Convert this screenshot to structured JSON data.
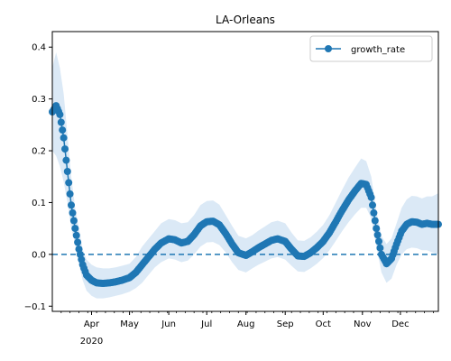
{
  "chart_data": {
    "type": "line",
    "title": "LA-Orleans",
    "xlabel": "",
    "ylabel": "",
    "x_range": [
      "2020-03-01",
      "2020-12-31"
    ],
    "ylim": [
      -0.11,
      0.43
    ],
    "yticks": [
      -0.1,
      0.0,
      0.1,
      0.2,
      0.3,
      0.4
    ],
    "ytick_labels": [
      "−0.1",
      "0.0",
      "0.1",
      "0.2",
      "0.3",
      "0.4"
    ],
    "xticks": [
      {
        "date": "2020-04-01",
        "label": "Apr",
        "sublabel": "2020"
      },
      {
        "date": "2020-05-01",
        "label": "May",
        "sublabel": ""
      },
      {
        "date": "2020-06-01",
        "label": "Jun",
        "sublabel": ""
      },
      {
        "date": "2020-07-01",
        "label": "Jul",
        "sublabel": ""
      },
      {
        "date": "2020-08-01",
        "label": "Aug",
        "sublabel": ""
      },
      {
        "date": "2020-09-01",
        "label": "Sep",
        "sublabel": ""
      },
      {
        "date": "2020-10-01",
        "label": "Oct",
        "sublabel": ""
      },
      {
        "date": "2020-11-01",
        "label": "Nov",
        "sublabel": ""
      },
      {
        "date": "2020-12-01",
        "label": "Dec",
        "sublabel": ""
      }
    ],
    "grid": false,
    "legend_position": "top-right",
    "reference_line": {
      "y": 0.0,
      "style": "dashed"
    },
    "series": [
      {
        "name": "growth_rate",
        "color": "#1f77b4",
        "band_color": "#dbe9f6",
        "points": [
          {
            "x": "2020-03-01",
            "y": 0.275,
            "lo": 0.2,
            "hi": 0.36
          },
          {
            "x": "2020-03-04",
            "y": 0.287,
            "lo": 0.19,
            "hi": 0.39
          },
          {
            "x": "2020-03-07",
            "y": 0.27,
            "lo": 0.17,
            "hi": 0.36
          },
          {
            "x": "2020-03-10",
            "y": 0.225,
            "lo": 0.14,
            "hi": 0.31
          },
          {
            "x": "2020-03-13",
            "y": 0.16,
            "lo": 0.1,
            "hi": 0.23
          },
          {
            "x": "2020-03-16",
            "y": 0.095,
            "lo": 0.05,
            "hi": 0.15
          },
          {
            "x": "2020-03-19",
            "y": 0.05,
            "lo": 0.02,
            "hi": 0.09
          },
          {
            "x": "2020-03-22",
            "y": 0.01,
            "lo": -0.02,
            "hi": 0.05
          },
          {
            "x": "2020-03-25",
            "y": -0.02,
            "lo": -0.05,
            "hi": 0.01
          },
          {
            "x": "2020-03-28",
            "y": -0.04,
            "lo": -0.07,
            "hi": -0.01
          },
          {
            "x": "2020-04-01",
            "y": -0.05,
            "lo": -0.08,
            "hi": -0.02
          },
          {
            "x": "2020-04-05",
            "y": -0.055,
            "lo": -0.085,
            "hi": -0.025
          },
          {
            "x": "2020-04-10",
            "y": -0.056,
            "lo": -0.085,
            "hi": -0.027
          },
          {
            "x": "2020-04-15",
            "y": -0.055,
            "lo": -0.083,
            "hi": -0.027
          },
          {
            "x": "2020-04-20",
            "y": -0.053,
            "lo": -0.08,
            "hi": -0.025
          },
          {
            "x": "2020-04-25",
            "y": -0.05,
            "lo": -0.077,
            "hi": -0.022
          },
          {
            "x": "2020-05-01",
            "y": -0.045,
            "lo": -0.072,
            "hi": -0.018
          },
          {
            "x": "2020-05-06",
            "y": -0.035,
            "lo": -0.065,
            "hi": -0.005
          },
          {
            "x": "2020-05-11",
            "y": -0.02,
            "lo": -0.055,
            "hi": 0.015
          },
          {
            "x": "2020-05-16",
            "y": -0.005,
            "lo": -0.04,
            "hi": 0.03
          },
          {
            "x": "2020-05-21",
            "y": 0.01,
            "lo": -0.025,
            "hi": 0.045
          },
          {
            "x": "2020-05-26",
            "y": 0.022,
            "lo": -0.015,
            "hi": 0.06
          },
          {
            "x": "2020-06-01",
            "y": 0.03,
            "lo": -0.008,
            "hi": 0.068
          },
          {
            "x": "2020-06-06",
            "y": 0.028,
            "lo": -0.01,
            "hi": 0.066
          },
          {
            "x": "2020-06-11",
            "y": 0.022,
            "lo": -0.015,
            "hi": 0.06
          },
          {
            "x": "2020-06-16",
            "y": 0.025,
            "lo": -0.012,
            "hi": 0.062
          },
          {
            "x": "2020-06-21",
            "y": 0.038,
            "lo": 0.0,
            "hi": 0.076
          },
          {
            "x": "2020-06-26",
            "y": 0.055,
            "lo": 0.015,
            "hi": 0.095
          },
          {
            "x": "2020-07-01",
            "y": 0.063,
            "lo": 0.023,
            "hi": 0.103
          },
          {
            "x": "2020-07-06",
            "y": 0.064,
            "lo": 0.024,
            "hi": 0.104
          },
          {
            "x": "2020-07-11",
            "y": 0.057,
            "lo": 0.018,
            "hi": 0.096
          },
          {
            "x": "2020-07-16",
            "y": 0.04,
            "lo": 0.004,
            "hi": 0.076
          },
          {
            "x": "2020-07-21",
            "y": 0.02,
            "lo": -0.015,
            "hi": 0.055
          },
          {
            "x": "2020-07-26",
            "y": 0.003,
            "lo": -0.03,
            "hi": 0.036
          },
          {
            "x": "2020-08-01",
            "y": -0.002,
            "lo": -0.035,
            "hi": 0.031
          },
          {
            "x": "2020-08-06",
            "y": 0.005,
            "lo": -0.027,
            "hi": 0.037
          },
          {
            "x": "2020-08-11",
            "y": 0.013,
            "lo": -0.02,
            "hi": 0.046
          },
          {
            "x": "2020-08-16",
            "y": 0.02,
            "lo": -0.014,
            "hi": 0.054
          },
          {
            "x": "2020-08-21",
            "y": 0.027,
            "lo": -0.008,
            "hi": 0.062
          },
          {
            "x": "2020-08-26",
            "y": 0.03,
            "lo": -0.005,
            "hi": 0.065
          },
          {
            "x": "2020-09-01",
            "y": 0.025,
            "lo": -0.01,
            "hi": 0.06
          },
          {
            "x": "2020-09-06",
            "y": 0.01,
            "lo": -0.022,
            "hi": 0.042
          },
          {
            "x": "2020-09-11",
            "y": -0.003,
            "lo": -0.033,
            "hi": 0.027
          },
          {
            "x": "2020-09-16",
            "y": -0.004,
            "lo": -0.034,
            "hi": 0.026
          },
          {
            "x": "2020-09-21",
            "y": 0.003,
            "lo": -0.027,
            "hi": 0.033
          },
          {
            "x": "2020-09-26",
            "y": 0.013,
            "lo": -0.018,
            "hi": 0.044
          },
          {
            "x": "2020-10-01",
            "y": 0.025,
            "lo": -0.007,
            "hi": 0.057
          },
          {
            "x": "2020-10-06",
            "y": 0.042,
            "lo": 0.008,
            "hi": 0.076
          },
          {
            "x": "2020-10-11",
            "y": 0.063,
            "lo": 0.026,
            "hi": 0.1
          },
          {
            "x": "2020-10-16",
            "y": 0.085,
            "lo": 0.045,
            "hi": 0.125
          },
          {
            "x": "2020-10-21",
            "y": 0.105,
            "lo": 0.062,
            "hi": 0.148
          },
          {
            "x": "2020-10-26",
            "y": 0.122,
            "lo": 0.077,
            "hi": 0.167
          },
          {
            "x": "2020-10-31",
            "y": 0.137,
            "lo": 0.09,
            "hi": 0.185
          },
          {
            "x": "2020-11-04",
            "y": 0.135,
            "lo": 0.09,
            "hi": 0.18
          },
          {
            "x": "2020-11-08",
            "y": 0.11,
            "lo": 0.07,
            "hi": 0.15
          },
          {
            "x": "2020-11-12",
            "y": 0.05,
            "lo": 0.015,
            "hi": 0.085
          },
          {
            "x": "2020-11-16",
            "y": 0.0,
            "lo": -0.035,
            "hi": 0.035
          },
          {
            "x": "2020-11-20",
            "y": -0.018,
            "lo": -0.055,
            "hi": 0.02
          },
          {
            "x": "2020-11-24",
            "y": -0.008,
            "lo": -0.047,
            "hi": 0.031
          },
          {
            "x": "2020-11-28",
            "y": 0.02,
            "lo": -0.02,
            "hi": 0.06
          },
          {
            "x": "2020-12-02",
            "y": 0.045,
            "lo": 0.0,
            "hi": 0.09
          },
          {
            "x": "2020-12-06",
            "y": 0.058,
            "lo": 0.01,
            "hi": 0.106
          },
          {
            "x": "2020-12-10",
            "y": 0.063,
            "lo": 0.013,
            "hi": 0.113
          },
          {
            "x": "2020-12-14",
            "y": 0.062,
            "lo": 0.012,
            "hi": 0.112
          },
          {
            "x": "2020-12-18",
            "y": 0.058,
            "lo": 0.008,
            "hi": 0.108
          },
          {
            "x": "2020-12-22",
            "y": 0.06,
            "lo": 0.008,
            "hi": 0.112
          },
          {
            "x": "2020-12-26",
            "y": 0.058,
            "lo": 0.004,
            "hi": 0.112
          },
          {
            "x": "2020-12-31",
            "y": 0.058,
            "lo": 0.0,
            "hi": 0.118
          }
        ]
      }
    ]
  }
}
